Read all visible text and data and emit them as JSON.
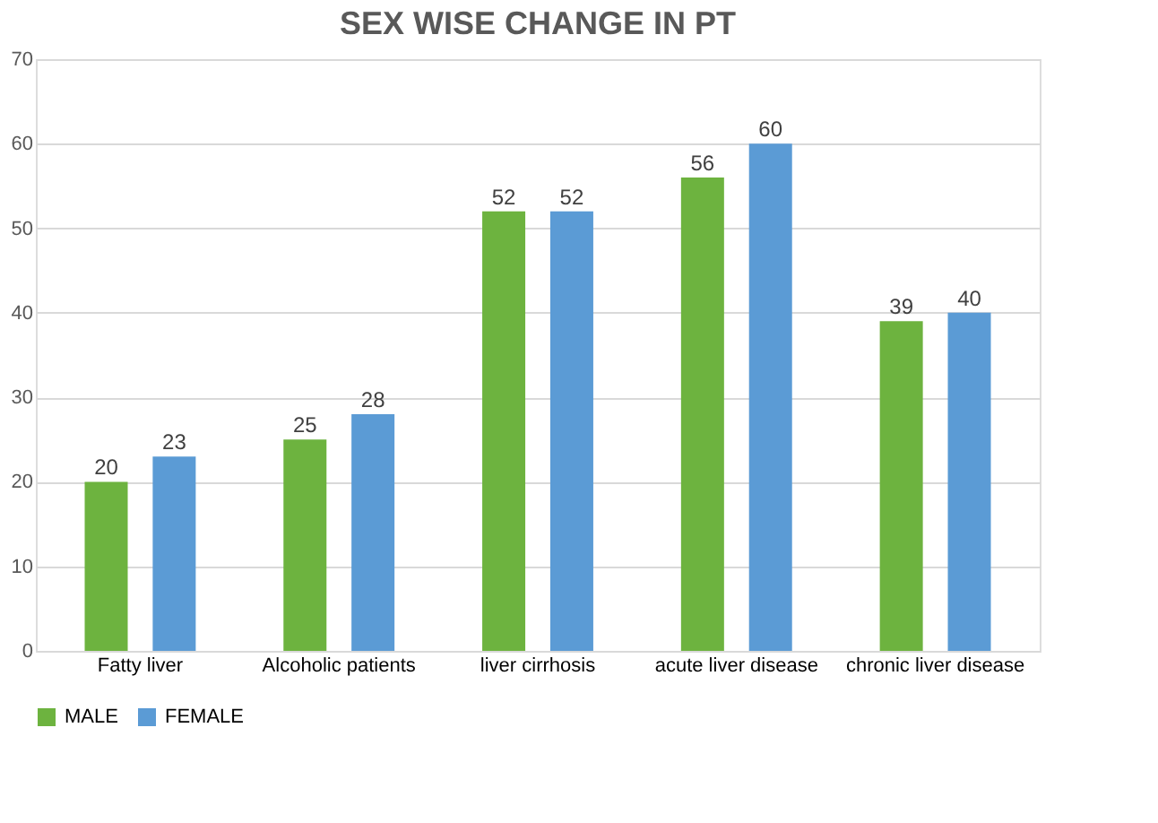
{
  "chart_data": {
    "type": "bar",
    "title": "SEX WISE CHANGE IN PT",
    "categories": [
      "Fatty liver",
      "Alcoholic patients",
      "liver cirrhosis",
      "acute liver disease",
      "chronic liver disease"
    ],
    "series": [
      {
        "name": "MALE",
        "color": "#6db33f",
        "values": [
          20,
          25,
          52,
          56,
          39
        ]
      },
      {
        "name": "FEMALE",
        "color": "#5b9bd5",
        "values": [
          23,
          28,
          52,
          60,
          40
        ]
      }
    ],
    "ylim": [
      0,
      70
    ],
    "yticks": [
      0,
      10,
      20,
      30,
      40,
      50,
      60,
      70
    ],
    "grid": "y",
    "legend": "bottom",
    "data_labels": true
  }
}
